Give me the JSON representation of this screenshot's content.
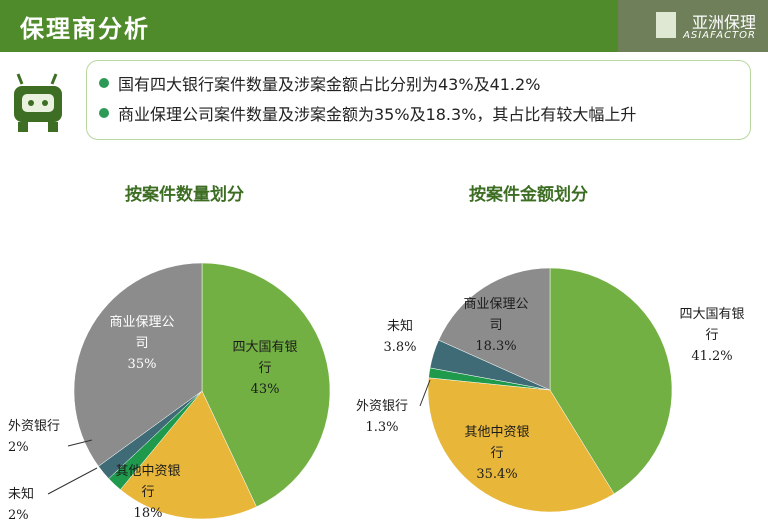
{
  "header": {
    "title": "保理商分析",
    "logo_text": "亚洲保理",
    "logo_sub": "ASIAFACTOR"
  },
  "bullets": [
    "国有四大银行案件数量及涉案金额占比分别为43%及41.2%",
    "商业保理公司案件数量及涉案金额为35%及18.3%，其占比有较大幅上升"
  ],
  "colors": {
    "big_four": "#72b043",
    "other_chinese": "#e8b73a",
    "unknown": "#1f9a4d",
    "foreign": "#3f6b76",
    "commercial": "#8c8c8c",
    "accent": "#4f8a2b"
  },
  "chart_data": [
    {
      "type": "pie",
      "title": "按案件数量划分",
      "slices": [
        {
          "lines": [
            "四大国有银",
            "行"
          ],
          "value_label": "43%",
          "value": 43,
          "color": "#72b043"
        },
        {
          "lines": [
            "其他中资银",
            "行"
          ],
          "value_label": "18%",
          "value": 18,
          "color": "#e8b73a"
        },
        {
          "lines": [
            "未知"
          ],
          "value_label": "2%",
          "value": 2,
          "color": "#1f9a4d"
        },
        {
          "lines": [
            "外资银行"
          ],
          "value_label": "2%",
          "value": 2,
          "color": "#3f6b76"
        },
        {
          "lines": [
            "商业保理公",
            "司"
          ],
          "value_label": "35%",
          "value": 35,
          "color": "#8c8c8c"
        }
      ]
    },
    {
      "type": "pie",
      "title": "按案件金额划分",
      "slices": [
        {
          "lines": [
            "四大国有银",
            "行"
          ],
          "value_label": "41.2%",
          "value": 41.2,
          "color": "#72b043"
        },
        {
          "lines": [
            "其他中资银",
            "行"
          ],
          "value_label": "35.4%",
          "value": 35.4,
          "color": "#e8b73a"
        },
        {
          "lines": [
            "外资银行"
          ],
          "value_label": "1.3%",
          "value": 1.3,
          "color": "#1f9a4d"
        },
        {
          "lines": [
            "未知"
          ],
          "value_label": "3.8%",
          "value": 3.8,
          "color": "#3f6b76"
        },
        {
          "lines": [
            "商业保理公",
            "司"
          ],
          "value_label": "18.3%",
          "value": 18.3,
          "color": "#8c8c8c"
        }
      ]
    }
  ]
}
